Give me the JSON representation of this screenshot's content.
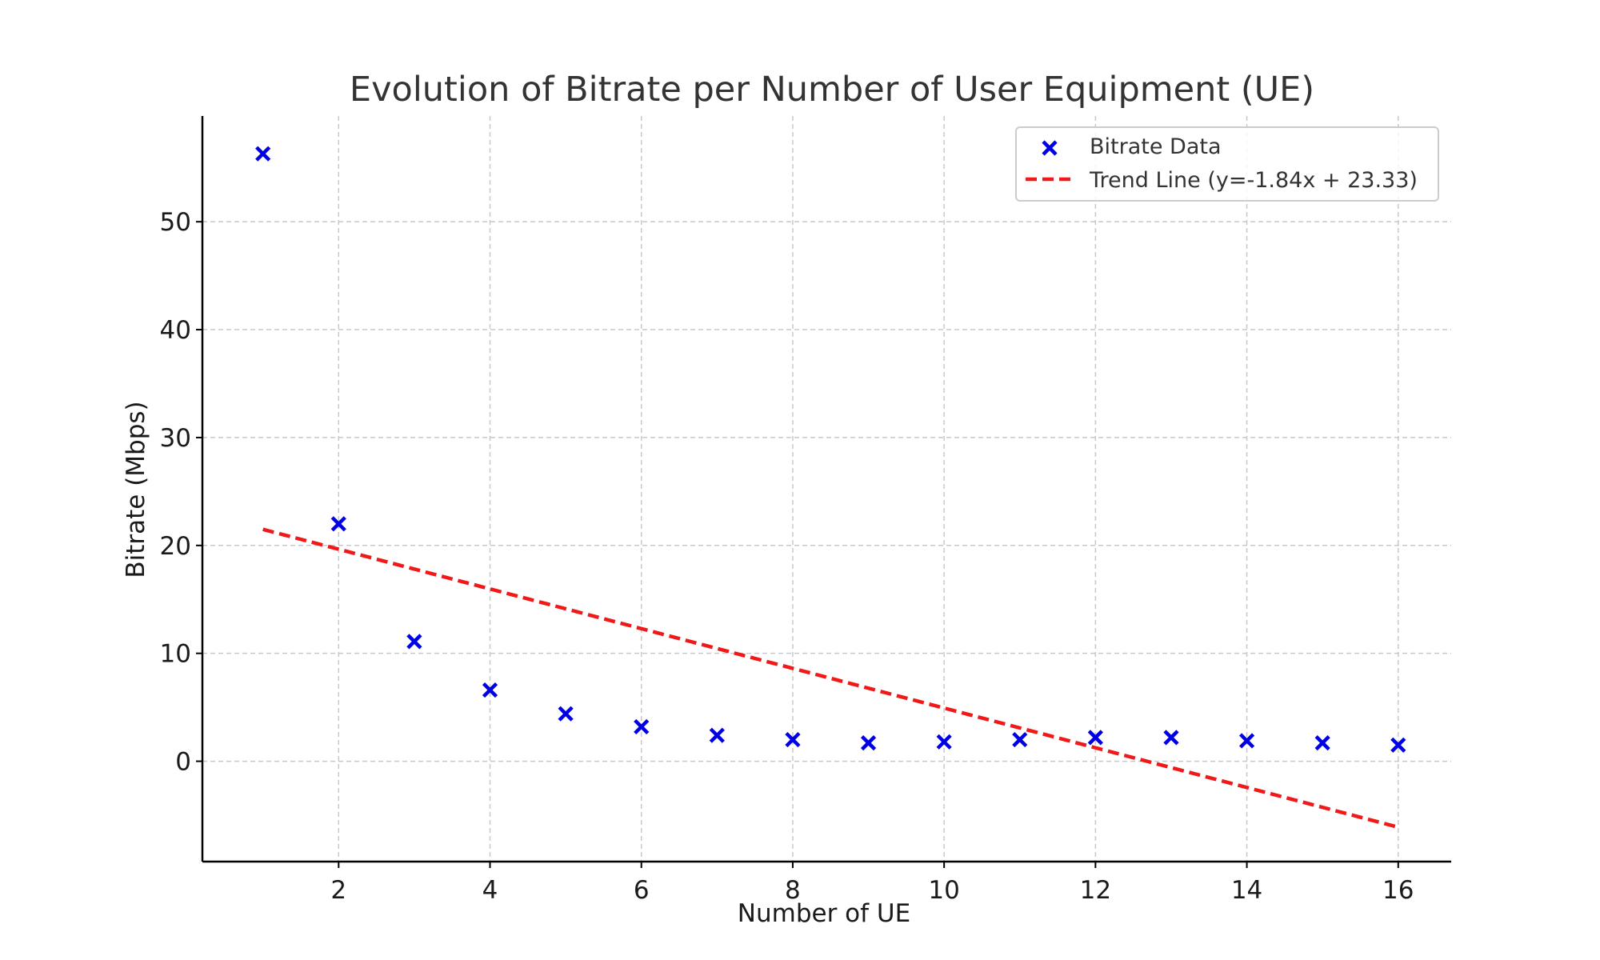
{
  "chart_data": {
    "type": "scatter",
    "title": "Evolution of Bitrate per Number of User Equipment (UE)",
    "xlabel": "Number of UE",
    "ylabel": "Bitrate (Mbps)",
    "xlim": [
      0.2,
      16.7
    ],
    "ylim": [
      -9.3,
      59.8
    ],
    "xticks": [
      2,
      4,
      6,
      8,
      10,
      12,
      14,
      16
    ],
    "yticks": [
      0,
      10,
      20,
      30,
      40,
      50
    ],
    "grid": true,
    "legend_position": "top-right",
    "series": [
      {
        "name": "Bitrate Data",
        "kind": "scatter",
        "marker": "x",
        "color": "#0000e6",
        "x": [
          1,
          2,
          3,
          4,
          5,
          6,
          7,
          8,
          9,
          10,
          11,
          12,
          13,
          14,
          15,
          16
        ],
        "y": [
          56.3,
          22.0,
          11.1,
          6.6,
          4.4,
          3.2,
          2.4,
          2.0,
          1.7,
          1.8,
          2.0,
          2.2,
          2.2,
          1.9,
          1.7,
          1.5
        ]
      },
      {
        "name": "Trend Line (y=-1.84x + 23.33)",
        "kind": "line",
        "style": "dashed",
        "color": "#f01818",
        "slope": -1.84,
        "intercept": 23.33,
        "x_range": [
          1,
          16
        ]
      }
    ]
  }
}
